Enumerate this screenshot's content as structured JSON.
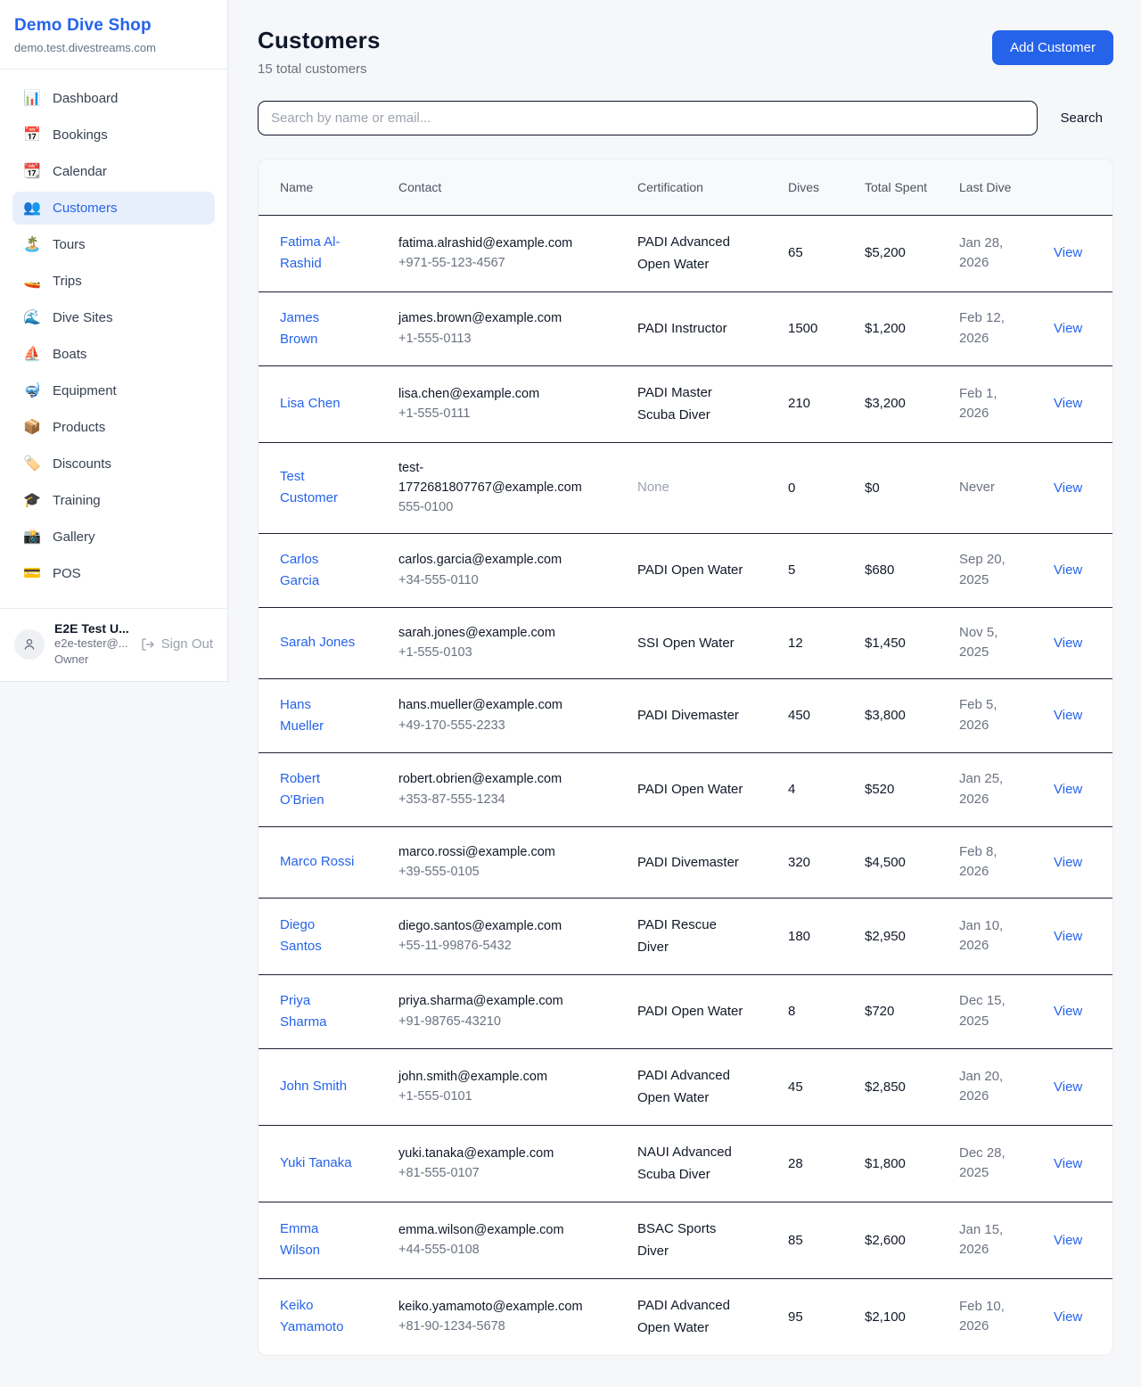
{
  "colors": {
    "accent": "#2563eb",
    "active_nav_bg": "#e7effc",
    "row_divider": "#1a2230",
    "header_bg": "#f8f9fb"
  },
  "sidebar": {
    "shop_name": "Demo Dive Shop",
    "shop_domain": "demo.test.divestreams.com",
    "active_item": "Customers",
    "nav": [
      {
        "label": "Dashboard",
        "icon": "📊",
        "icon_name": "bar-chart-icon"
      },
      {
        "label": "Bookings",
        "icon": "📅",
        "icon_name": "calendar-icon"
      },
      {
        "label": "Calendar",
        "icon": "📆",
        "icon_name": "tear-off-calendar-icon"
      },
      {
        "label": "Customers",
        "icon": "👥",
        "icon_name": "people-icon"
      },
      {
        "label": "Tours",
        "icon": "🏝️",
        "icon_name": "island-icon"
      },
      {
        "label": "Trips",
        "icon": "🚤",
        "icon_name": "speedboat-icon"
      },
      {
        "label": "Dive Sites",
        "icon": "🌊",
        "icon_name": "wave-icon"
      },
      {
        "label": "Boats",
        "icon": "⛵",
        "icon_name": "sailboat-icon"
      },
      {
        "label": "Equipment",
        "icon": "🤿",
        "icon_name": "diving-mask-icon"
      },
      {
        "label": "Products",
        "icon": "📦",
        "icon_name": "package-icon"
      },
      {
        "label": "Discounts",
        "icon": "🏷️",
        "icon_name": "tag-icon"
      },
      {
        "label": "Training",
        "icon": "🎓",
        "icon_name": "graduation-cap-icon"
      },
      {
        "label": "Gallery",
        "icon": "📸",
        "icon_name": "camera-icon"
      },
      {
        "label": "POS",
        "icon": "💳",
        "icon_name": "credit-card-icon"
      }
    ],
    "user": {
      "name": "E2E Test U...",
      "email": "e2e-tester@...",
      "role": "Owner",
      "sign_out_label": "Sign Out"
    }
  },
  "header": {
    "title": "Customers",
    "subtitle": "15 total customers",
    "add_button_label": "Add Customer"
  },
  "search": {
    "placeholder": "Search by name or email...",
    "button_label": "Search"
  },
  "table": {
    "columns": [
      "Name",
      "Contact",
      "Certification",
      "Dives",
      "Total Spent",
      "Last Dive",
      ""
    ],
    "action_label": "View",
    "rows": [
      {
        "name": "Fatima Al-Rashid",
        "email": "fatima.alrashid@example.com",
        "phone": "+971-55-123-4567",
        "certification": "PADI Advanced Open Water",
        "dives": "65",
        "total_spent": "$5,200",
        "last_dive": "Jan 28, 2026"
      },
      {
        "name": "James Brown",
        "email": "james.brown@example.com",
        "phone": "+1-555-0113",
        "certification": "PADI Instructor",
        "dives": "1500",
        "total_spent": "$1,200",
        "last_dive": "Feb 12, 2026"
      },
      {
        "name": "Lisa Chen",
        "email": "lisa.chen@example.com",
        "phone": "+1-555-0111",
        "certification": "PADI Master Scuba Diver",
        "dives": "210",
        "total_spent": "$3,200",
        "last_dive": "Feb 1, 2026"
      },
      {
        "name": "Test Customer",
        "email": "test-1772681807767@example.com",
        "phone": "555-0100",
        "certification": "None",
        "dives": "0",
        "total_spent": "$0",
        "last_dive": "Never"
      },
      {
        "name": "Carlos Garcia",
        "email": "carlos.garcia@example.com",
        "phone": "+34-555-0110",
        "certification": "PADI Open Water",
        "dives": "5",
        "total_spent": "$680",
        "last_dive": "Sep 20, 2025"
      },
      {
        "name": "Sarah Jones",
        "email": "sarah.jones@example.com",
        "phone": "+1-555-0103",
        "certification": "SSI Open Water",
        "dives": "12",
        "total_spent": "$1,450",
        "last_dive": "Nov 5, 2025"
      },
      {
        "name": "Hans Mueller",
        "email": "hans.mueller@example.com",
        "phone": "+49-170-555-2233",
        "certification": "PADI Divemaster",
        "dives": "450",
        "total_spent": "$3,800",
        "last_dive": "Feb 5, 2026"
      },
      {
        "name": "Robert O'Brien",
        "email": "robert.obrien@example.com",
        "phone": "+353-87-555-1234",
        "certification": "PADI Open Water",
        "dives": "4",
        "total_spent": "$520",
        "last_dive": "Jan 25, 2026"
      },
      {
        "name": "Marco Rossi",
        "email": "marco.rossi@example.com",
        "phone": "+39-555-0105",
        "certification": "PADI Divemaster",
        "dives": "320",
        "total_spent": "$4,500",
        "last_dive": "Feb 8, 2026"
      },
      {
        "name": "Diego Santos",
        "email": "diego.santos@example.com",
        "phone": "+55-11-99876-5432",
        "certification": "PADI Rescue Diver",
        "dives": "180",
        "total_spent": "$2,950",
        "last_dive": "Jan 10, 2026"
      },
      {
        "name": "Priya Sharma",
        "email": "priya.sharma@example.com",
        "phone": "+91-98765-43210",
        "certification": "PADI Open Water",
        "dives": "8",
        "total_spent": "$720",
        "last_dive": "Dec 15, 2025"
      },
      {
        "name": "John Smith",
        "email": "john.smith@example.com",
        "phone": "+1-555-0101",
        "certification": "PADI Advanced Open Water",
        "dives": "45",
        "total_spent": "$2,850",
        "last_dive": "Jan 20, 2026"
      },
      {
        "name": "Yuki Tanaka",
        "email": "yuki.tanaka@example.com",
        "phone": "+81-555-0107",
        "certification": "NAUI Advanced Scuba Diver",
        "dives": "28",
        "total_spent": "$1,800",
        "last_dive": "Dec 28, 2025"
      },
      {
        "name": "Emma Wilson",
        "email": "emma.wilson@example.com",
        "phone": "+44-555-0108",
        "certification": "BSAC Sports Diver",
        "dives": "85",
        "total_spent": "$2,600",
        "last_dive": "Jan 15, 2026"
      },
      {
        "name": "Keiko Yamamoto",
        "email": "keiko.yamamoto@example.com",
        "phone": "+81-90-1234-5678",
        "certification": "PADI Advanced Open Water",
        "dives": "95",
        "total_spent": "$2,100",
        "last_dive": "Feb 10, 2026"
      }
    ]
  }
}
